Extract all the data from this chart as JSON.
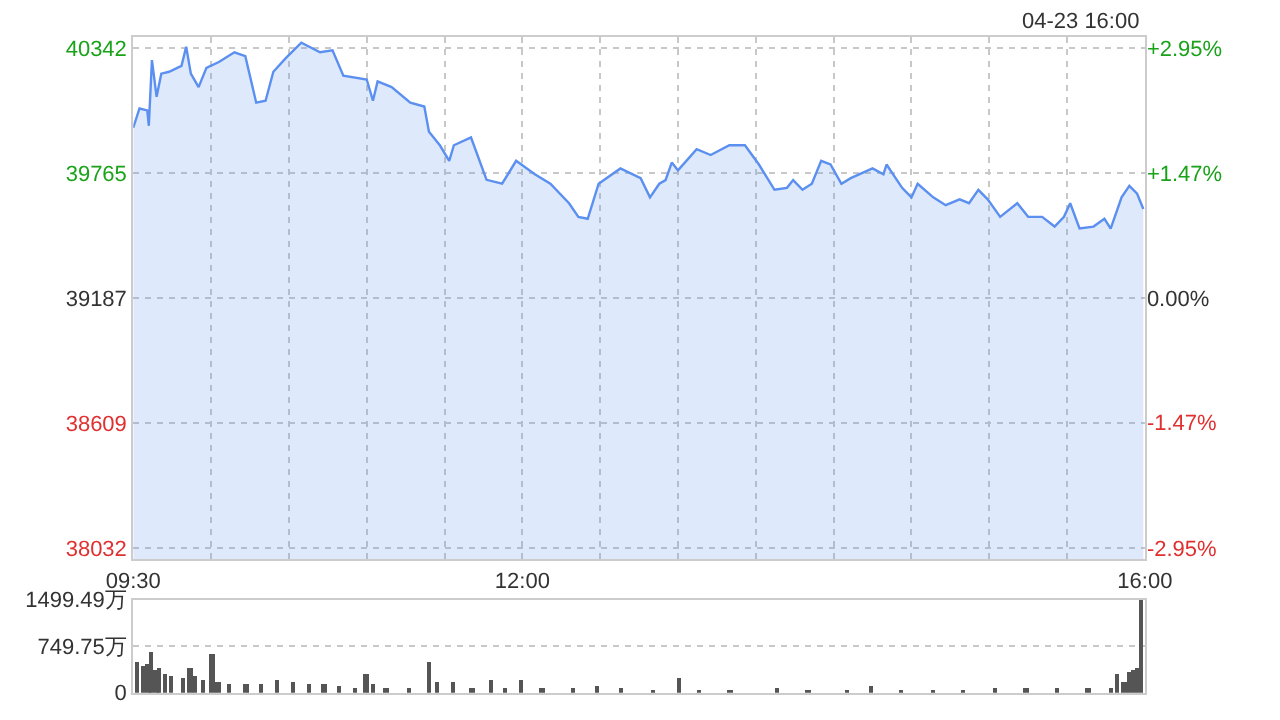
{
  "chart_data": [
    {
      "type": "area",
      "annotations": [
        "04-23 16:00"
      ],
      "x": [
        9.5,
        9.54,
        9.59,
        9.6,
        9.62,
        9.65,
        9.68,
        9.73,
        9.81,
        9.84,
        9.87,
        9.92,
        9.97,
        10.05,
        10.15,
        10.22,
        10.29,
        10.35,
        10.4,
        10.48,
        10.58,
        10.7,
        10.78,
        10.85,
        11.0,
        11.04,
        11.07,
        11.16,
        11.28,
        11.37,
        11.4,
        11.47,
        11.53,
        11.56,
        11.67,
        11.77,
        11.87,
        11.96,
        12.08,
        12.18,
        12.3,
        12.36,
        12.42,
        12.49,
        12.63,
        12.76,
        12.82,
        12.88,
        12.92,
        12.96,
        13.0,
        13.12,
        13.21,
        13.33,
        13.43,
        13.52,
        13.62,
        13.7,
        13.74,
        13.8,
        13.86,
        13.92,
        13.98,
        14.05,
        14.11,
        14.25,
        14.32,
        14.34,
        14.44,
        14.5,
        14.54,
        14.64,
        14.72,
        14.81,
        14.87,
        14.93,
        14.99,
        15.07,
        15.18,
        15.25,
        15.34,
        15.42,
        15.48,
        15.52,
        15.58,
        15.67,
        15.74,
        15.78,
        15.85,
        15.9,
        15.95,
        15.99
      ],
      "series": [
        {
          "color": "#5b8ff0",
          "values": [
            39975,
            40064,
            40055,
            39984,
            40288,
            40118,
            40225,
            40234,
            40261,
            40350,
            40225,
            40163,
            40252,
            40279,
            40324,
            40306,
            40091,
            40100,
            40234,
            40297,
            40368,
            40324,
            40333,
            40216,
            40198,
            40100,
            40189,
            40163,
            40091,
            40073,
            39957,
            39894,
            39822,
            39894,
            39930,
            39734,
            39716,
            39822,
            39760,
            39716,
            39626,
            39563,
            39554,
            39716,
            39787,
            39742,
            39653,
            39716,
            39733,
            39814,
            39778,
            39876,
            39849,
            39894,
            39894,
            39805,
            39688,
            39697,
            39733,
            39688,
            39716,
            39822,
            39805,
            39716,
            39742,
            39787,
            39760,
            39805,
            39697,
            39653,
            39716,
            39653,
            39617,
            39644,
            39626,
            39688,
            39644,
            39563,
            39626,
            39563,
            39563,
            39518,
            39563,
            39626,
            39509,
            39518,
            39554,
            39509,
            39653,
            39706,
            39670,
            39599
          ]
        }
      ],
      "xlim": [
        9.5,
        16
      ],
      "xticks": [
        {
          "value": 9.5,
          "label": "09:30"
        },
        {
          "value": 10,
          "label": null
        },
        {
          "value": 10.5,
          "label": null
        },
        {
          "value": 11,
          "label": null
        },
        {
          "value": 11.5,
          "label": null
        },
        {
          "value": 12,
          "label": "12:00"
        },
        {
          "value": 12.5,
          "label": null
        },
        {
          "value": 13,
          "label": null
        },
        {
          "value": 13.5,
          "label": null
        },
        {
          "value": 14,
          "label": null
        },
        {
          "value": 14.5,
          "label": null
        },
        {
          "value": 15,
          "label": null
        },
        {
          "value": 15.5,
          "label": null
        },
        {
          "value": 16,
          "label": "16:00"
        }
      ],
      "ylim": [
        37980,
        40394
      ],
      "yticks": [
        38032,
        38609,
        39187,
        39765,
        40342
      ],
      "y2lim": [
        -3.08,
        3.08
      ],
      "y2ticks": [
        {
          "value": -2.95,
          "label": "-2.95%"
        },
        {
          "value": -1.47,
          "label": "-1.47%"
        },
        {
          "value": 0,
          "label": "0.00%"
        },
        {
          "value": 1.47,
          "label": "+1.47%"
        },
        {
          "value": 2.95,
          "label": "+2.95%"
        }
      ],
      "grid": true
    },
    {
      "type": "bar",
      "tick_labels": "y",
      "grid": "y",
      "x": [
        9.53,
        9.57,
        9.6,
        9.62,
        9.65,
        9.67,
        9.71,
        9.75,
        9.82,
        9.87,
        9.9,
        9.95,
        10.01,
        10.05,
        10.12,
        10.23,
        10.33,
        10.43,
        10.53,
        10.63,
        10.73,
        10.83,
        10.93,
        11.0,
        11.05,
        11.13,
        11.28,
        11.4,
        11.46,
        11.56,
        11.68,
        11.8,
        11.89,
        12.0,
        12.13,
        12.33,
        12.48,
        12.64,
        12.84,
        13.01,
        13.14,
        13.34,
        13.64,
        13.84,
        14.09,
        14.24,
        14.44,
        14.64,
        14.84,
        15.04,
        15.24,
        15.44,
        15.64,
        15.79,
        15.83,
        15.87,
        15.9,
        15.93,
        15.955,
        15.98
      ],
      "series": [
        {
          "color": "#555555",
          "values": [
            500,
            450,
            470,
            670,
            370,
            410,
            320,
            290,
            260,
            420,
            290,
            220,
            620,
            190,
            150,
            160,
            140,
            200,
            170,
            160,
            150,
            110,
            90,
            300,
            140,
            90,
            100,
            500,
            190,
            170,
            100,
            220,
            100,
            200,
            70,
            70,
            120,
            90,
            60,
            250,
            60,
            50,
            70,
            50,
            60,
            120,
            60,
            50,
            60,
            90,
            70,
            100,
            100,
            100,
            310,
            190,
            350,
            380,
            410,
            1499.49
          ]
        }
      ],
      "xlim": [
        9.5,
        16
      ],
      "ylim": [
        0,
        1499.49
      ],
      "yticks": [
        {
          "value": 0,
          "label": "0"
        },
        {
          "value": 749.75,
          "label": "749.75万"
        },
        {
          "value": 1499.49,
          "label": "1499.49万"
        }
      ]
    }
  ]
}
